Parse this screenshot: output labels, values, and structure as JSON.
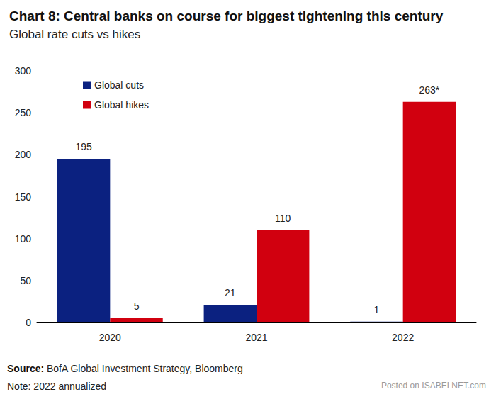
{
  "chart_data": {
    "type": "bar",
    "title": "Chart 8: Central banks on course for biggest tightening this century",
    "subtitle": "Global rate cuts vs hikes",
    "categories": [
      "2020",
      "2021",
      "2022"
    ],
    "series": [
      {
        "name": "Global cuts",
        "color": "#0b2180",
        "values": [
          195,
          21,
          1
        ]
      },
      {
        "name": "Global hikes",
        "color": "#d1000f",
        "values": [
          5,
          110,
          263
        ],
        "value_labels": [
          "5",
          "110",
          "263*"
        ]
      }
    ],
    "ylim": [
      0,
      300
    ],
    "yticks": [
      0,
      50,
      100,
      150,
      200,
      250,
      300
    ],
    "grid": false,
    "legend": "top-left",
    "data_labels": true,
    "source": "Source: BofA Global Investment Strategy, Bloomberg",
    "note": "Note: 2022 annualized",
    "watermark": "Posted on ISABELNET.com"
  }
}
